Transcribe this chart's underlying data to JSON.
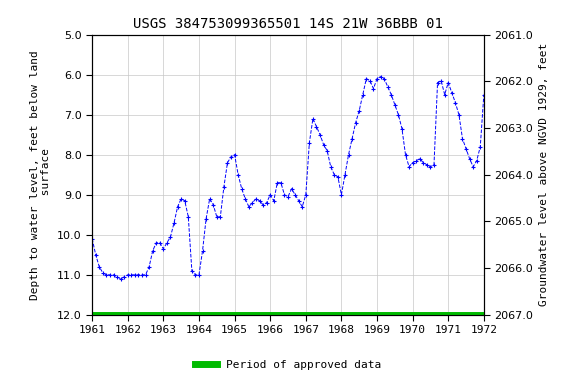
{
  "title": "USGS 384753099365501 14S 21W 36BBB 01",
  "ylabel_left": "Depth to water level, feet below land\n surface",
  "ylabel_right": "Groundwater level above NGVD 1929, feet",
  "xlim": [
    1961,
    1972
  ],
  "ylim_left": [
    5.0,
    12.0
  ],
  "ylim_right": [
    2067.0,
    2061.0
  ],
  "left_ticks": [
    5.0,
    6.0,
    7.0,
    8.0,
    9.0,
    10.0,
    11.0,
    12.0
  ],
  "right_ticks": [
    2067.0,
    2066.0,
    2065.0,
    2064.0,
    2063.0,
    2062.0,
    2061.0
  ],
  "xticks": [
    1961,
    1962,
    1963,
    1964,
    1965,
    1966,
    1967,
    1968,
    1969,
    1970,
    1971,
    1972
  ],
  "line_color": "#0000ff",
  "green_bar_color": "#00bb00",
  "background_color": "#ffffff",
  "grid_color": "#c8c8c8",
  "title_fontsize": 10,
  "axis_label_fontsize": 8,
  "tick_fontsize": 8,
  "legend_label": "Period of approved data",
  "data_x": [
    1961.0,
    1961.1,
    1961.2,
    1961.3,
    1961.4,
    1961.5,
    1961.6,
    1961.7,
    1961.8,
    1961.9,
    1962.0,
    1962.1,
    1962.2,
    1962.3,
    1962.4,
    1962.5,
    1962.6,
    1962.7,
    1962.8,
    1962.9,
    1963.0,
    1963.1,
    1963.2,
    1963.3,
    1963.4,
    1963.5,
    1963.6,
    1963.7,
    1963.8,
    1963.9,
    1964.0,
    1964.1,
    1964.2,
    1964.3,
    1964.4,
    1964.5,
    1964.6,
    1964.7,
    1964.8,
    1964.9,
    1965.0,
    1965.1,
    1965.2,
    1965.3,
    1965.4,
    1965.5,
    1965.6,
    1965.7,
    1965.8,
    1965.9,
    1966.0,
    1966.1,
    1966.2,
    1966.3,
    1966.4,
    1966.5,
    1966.6,
    1966.7,
    1966.8,
    1966.9,
    1967.0,
    1967.1,
    1967.2,
    1967.3,
    1967.4,
    1967.5,
    1967.6,
    1967.7,
    1967.8,
    1967.9,
    1968.0,
    1968.1,
    1968.2,
    1968.3,
    1968.4,
    1968.5,
    1968.6,
    1968.7,
    1968.8,
    1968.9,
    1969.0,
    1969.1,
    1969.2,
    1969.3,
    1969.4,
    1969.5,
    1969.6,
    1969.7,
    1969.8,
    1969.9,
    1970.0,
    1970.1,
    1970.2,
    1970.3,
    1970.4,
    1970.5,
    1970.6,
    1970.7,
    1970.8,
    1970.9,
    1971.0,
    1971.1,
    1971.2,
    1971.3,
    1971.4,
    1971.5,
    1971.6,
    1971.7,
    1971.8,
    1971.9,
    1972.0
  ],
  "data_y": [
    10.1,
    10.5,
    10.8,
    10.95,
    11.0,
    11.0,
    11.0,
    11.05,
    11.1,
    11.05,
    11.0,
    11.0,
    11.0,
    11.0,
    11.0,
    11.0,
    10.8,
    10.4,
    10.2,
    10.2,
    10.35,
    10.2,
    10.05,
    9.7,
    9.3,
    9.1,
    9.15,
    9.55,
    10.9,
    11.0,
    11.0,
    10.4,
    9.6,
    9.1,
    9.25,
    9.55,
    9.55,
    8.8,
    8.2,
    8.05,
    8.0,
    8.5,
    8.85,
    9.1,
    9.3,
    9.2,
    9.1,
    9.15,
    9.25,
    9.2,
    9.0,
    9.15,
    8.7,
    8.7,
    9.0,
    9.05,
    8.85,
    9.0,
    9.15,
    9.3,
    9.0,
    7.7,
    7.1,
    7.3,
    7.5,
    7.75,
    7.9,
    8.3,
    8.5,
    8.55,
    9.0,
    8.5,
    8.0,
    7.6,
    7.2,
    6.9,
    6.5,
    6.1,
    6.15,
    6.35,
    6.1,
    6.05,
    6.1,
    6.3,
    6.5,
    6.75,
    7.0,
    7.35,
    8.0,
    8.3,
    8.2,
    8.15,
    8.1,
    8.2,
    8.25,
    8.3,
    8.25,
    6.2,
    6.15,
    6.5,
    6.2,
    6.45,
    6.7,
    7.0,
    7.6,
    7.85,
    8.1,
    8.3,
    8.15,
    7.8,
    6.5
  ]
}
